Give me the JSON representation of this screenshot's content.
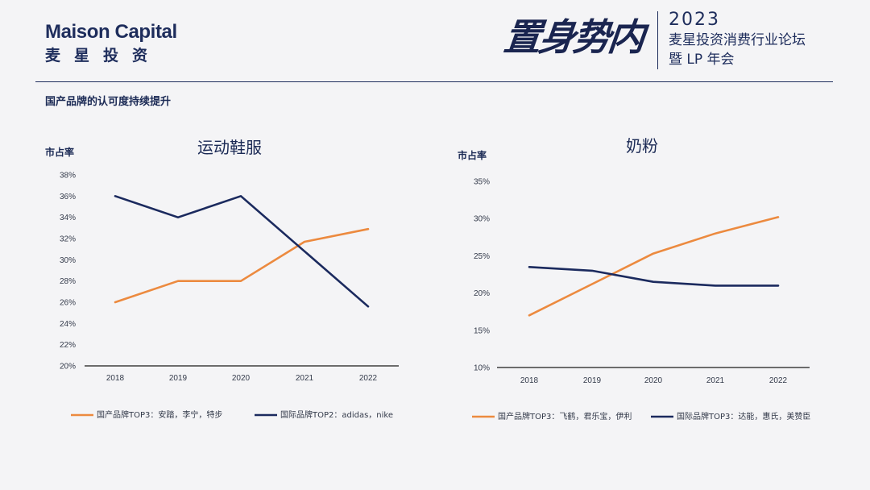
{
  "header": {
    "brand_en": "Maison Capital",
    "brand_cn": "麦星投资",
    "slogan": "置身势内",
    "event_year": "2023",
    "event_line1": "麦星投资消费行业论坛",
    "event_line2": "暨 LP 年会"
  },
  "subtitle": "国产品牌的认可度持续提升",
  "colors": {
    "domestic": "#ec8a3f",
    "international": "#1b2a5e",
    "brand": "#1e2d5c"
  },
  "chart_data": [
    {
      "type": "line",
      "title": "运动鞋服",
      "ylabel": "市占率",
      "categories": [
        "2018",
        "2019",
        "2020",
        "2021",
        "2022"
      ],
      "ylim": [
        20,
        38
      ],
      "ytick_step": 2,
      "unit": "%",
      "grid": false,
      "legend_position": "bottom",
      "series": [
        {
          "name": "国产品牌TOP3：安踏，李宁，特步",
          "color": "#ec8a3f",
          "values": [
            26,
            28,
            28,
            31.7,
            32.9
          ]
        },
        {
          "name": "国际品牌TOP2：adidas，nike",
          "color": "#1b2a5e",
          "values": [
            36,
            34,
            36,
            30.8,
            25.6
          ]
        }
      ]
    },
    {
      "type": "line",
      "title": "奶粉",
      "ylabel": "市占率",
      "categories": [
        "2018",
        "2019",
        "2020",
        "2021",
        "2022"
      ],
      "ylim": [
        10,
        35
      ],
      "ytick_step": 5,
      "unit": "%",
      "grid": false,
      "legend_position": "bottom",
      "series": [
        {
          "name": "国产品牌TOP3：飞鹤，君乐宝，伊利",
          "color": "#ec8a3f",
          "values": [
            17,
            21.2,
            25.3,
            28,
            30.2
          ]
        },
        {
          "name": "国际品牌TOP3：达能，惠氏，美赞臣",
          "color": "#1b2a5e",
          "values": [
            23.5,
            23,
            21.5,
            21,
            21
          ]
        }
      ]
    }
  ]
}
